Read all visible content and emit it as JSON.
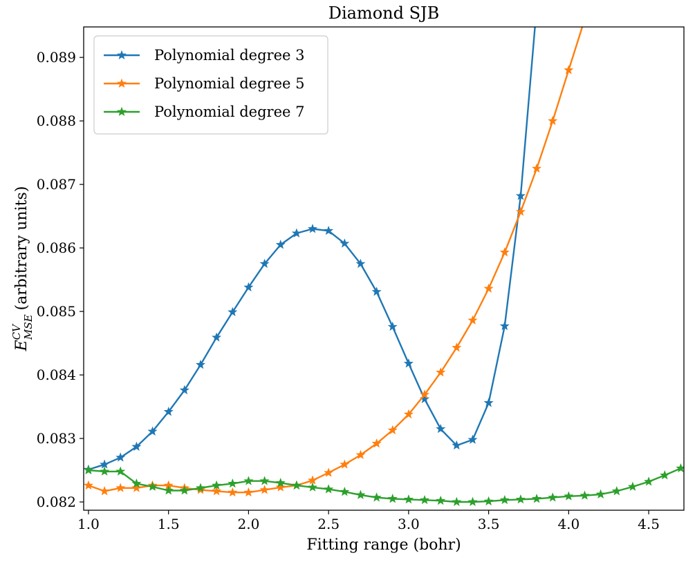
{
  "chart_data": {
    "type": "line",
    "title": "Diamond SJB",
    "xlabel": "Fitting range (bohr)",
    "ylabel_main": "E",
    "ylabel_sup": "CV",
    "ylabel_sub": "MSE",
    "ylabel_rest": "(arbitrary units)",
    "xlim": [
      0.97,
      4.72
    ],
    "ylim": [
      0.08187,
      0.08948
    ],
    "x_ticks": [
      1.0,
      1.5,
      2.0,
      2.5,
      3.0,
      3.5,
      4.0,
      4.5
    ],
    "x_tick_labels": [
      "1.0",
      "1.5",
      "2.0",
      "2.5",
      "3.0",
      "3.5",
      "4.0",
      "4.5"
    ],
    "y_ticks": [
      0.082,
      0.083,
      0.084,
      0.085,
      0.086,
      0.087,
      0.088,
      0.089
    ],
    "y_tick_labels": [
      "0.082",
      "0.083",
      "0.084",
      "0.085",
      "0.086",
      "0.087",
      "0.088",
      "0.089"
    ],
    "legend_position": "top-left",
    "grid": false,
    "series": [
      {
        "name": "Polynomial degree 3",
        "color": "#1f77b4",
        "x": [
          1.0,
          1.1,
          1.2,
          1.3,
          1.4,
          1.5,
          1.6,
          1.7,
          1.8,
          1.9,
          2.0,
          2.1,
          2.2,
          2.3,
          2.4,
          2.5,
          2.6,
          2.7,
          2.8,
          2.9,
          3.0,
          3.1,
          3.2,
          3.3,
          3.4,
          3.5,
          3.6,
          3.7,
          3.8
        ],
        "y": [
          0.08251,
          0.08259,
          0.0827,
          0.08287,
          0.08311,
          0.08342,
          0.08376,
          0.08416,
          0.08459,
          0.08499,
          0.08538,
          0.08575,
          0.08605,
          0.08623,
          0.0863,
          0.08627,
          0.08607,
          0.08575,
          0.08531,
          0.08476,
          0.08418,
          0.08362,
          0.08315,
          0.08289,
          0.08298,
          0.08356,
          0.08477,
          0.08682,
          0.0898
        ]
      },
      {
        "name": "Polynomial degree 5",
        "color": "#ff7f0e",
        "x": [
          1.0,
          1.1,
          1.2,
          1.3,
          1.4,
          1.5,
          1.6,
          1.7,
          1.8,
          1.9,
          2.0,
          2.1,
          2.2,
          2.3,
          2.4,
          2.5,
          2.6,
          2.7,
          2.8,
          2.9,
          3.0,
          3.1,
          3.2,
          3.3,
          3.4,
          3.5,
          3.6,
          3.7,
          3.8,
          3.9,
          4.0,
          4.1
        ],
        "y": [
          0.08226,
          0.08217,
          0.08222,
          0.08222,
          0.08226,
          0.08226,
          0.08222,
          0.08219,
          0.08217,
          0.08215,
          0.08215,
          0.08219,
          0.08223,
          0.08226,
          0.08234,
          0.08246,
          0.08259,
          0.08274,
          0.08292,
          0.08313,
          0.08338,
          0.08369,
          0.08404,
          0.08443,
          0.08486,
          0.08536,
          0.08593,
          0.08657,
          0.08725,
          0.088,
          0.0888,
          0.0896
        ]
      },
      {
        "name": "Polynomial degree 7",
        "color": "#2ca02c",
        "x": [
          1.0,
          1.1,
          1.2,
          1.3,
          1.4,
          1.5,
          1.6,
          1.7,
          1.8,
          1.9,
          2.0,
          2.1,
          2.2,
          2.3,
          2.4,
          2.5,
          2.6,
          2.7,
          2.8,
          2.9,
          3.0,
          3.1,
          3.2,
          3.3,
          3.4,
          3.5,
          3.6,
          3.7,
          3.8,
          3.9,
          4.0,
          4.1,
          4.2,
          4.3,
          4.4,
          4.5,
          4.6,
          4.7
        ],
        "y": [
          0.0825,
          0.08248,
          0.08248,
          0.08229,
          0.08224,
          0.08218,
          0.08218,
          0.08222,
          0.08226,
          0.08229,
          0.08233,
          0.08233,
          0.0823,
          0.08226,
          0.08223,
          0.0822,
          0.08216,
          0.08211,
          0.08207,
          0.08205,
          0.08204,
          0.08203,
          0.08202,
          0.082,
          0.082,
          0.08201,
          0.08203,
          0.08204,
          0.08205,
          0.08207,
          0.08209,
          0.0821,
          0.08212,
          0.08217,
          0.08224,
          0.08232,
          0.08242,
          0.08253
        ]
      }
    ]
  }
}
